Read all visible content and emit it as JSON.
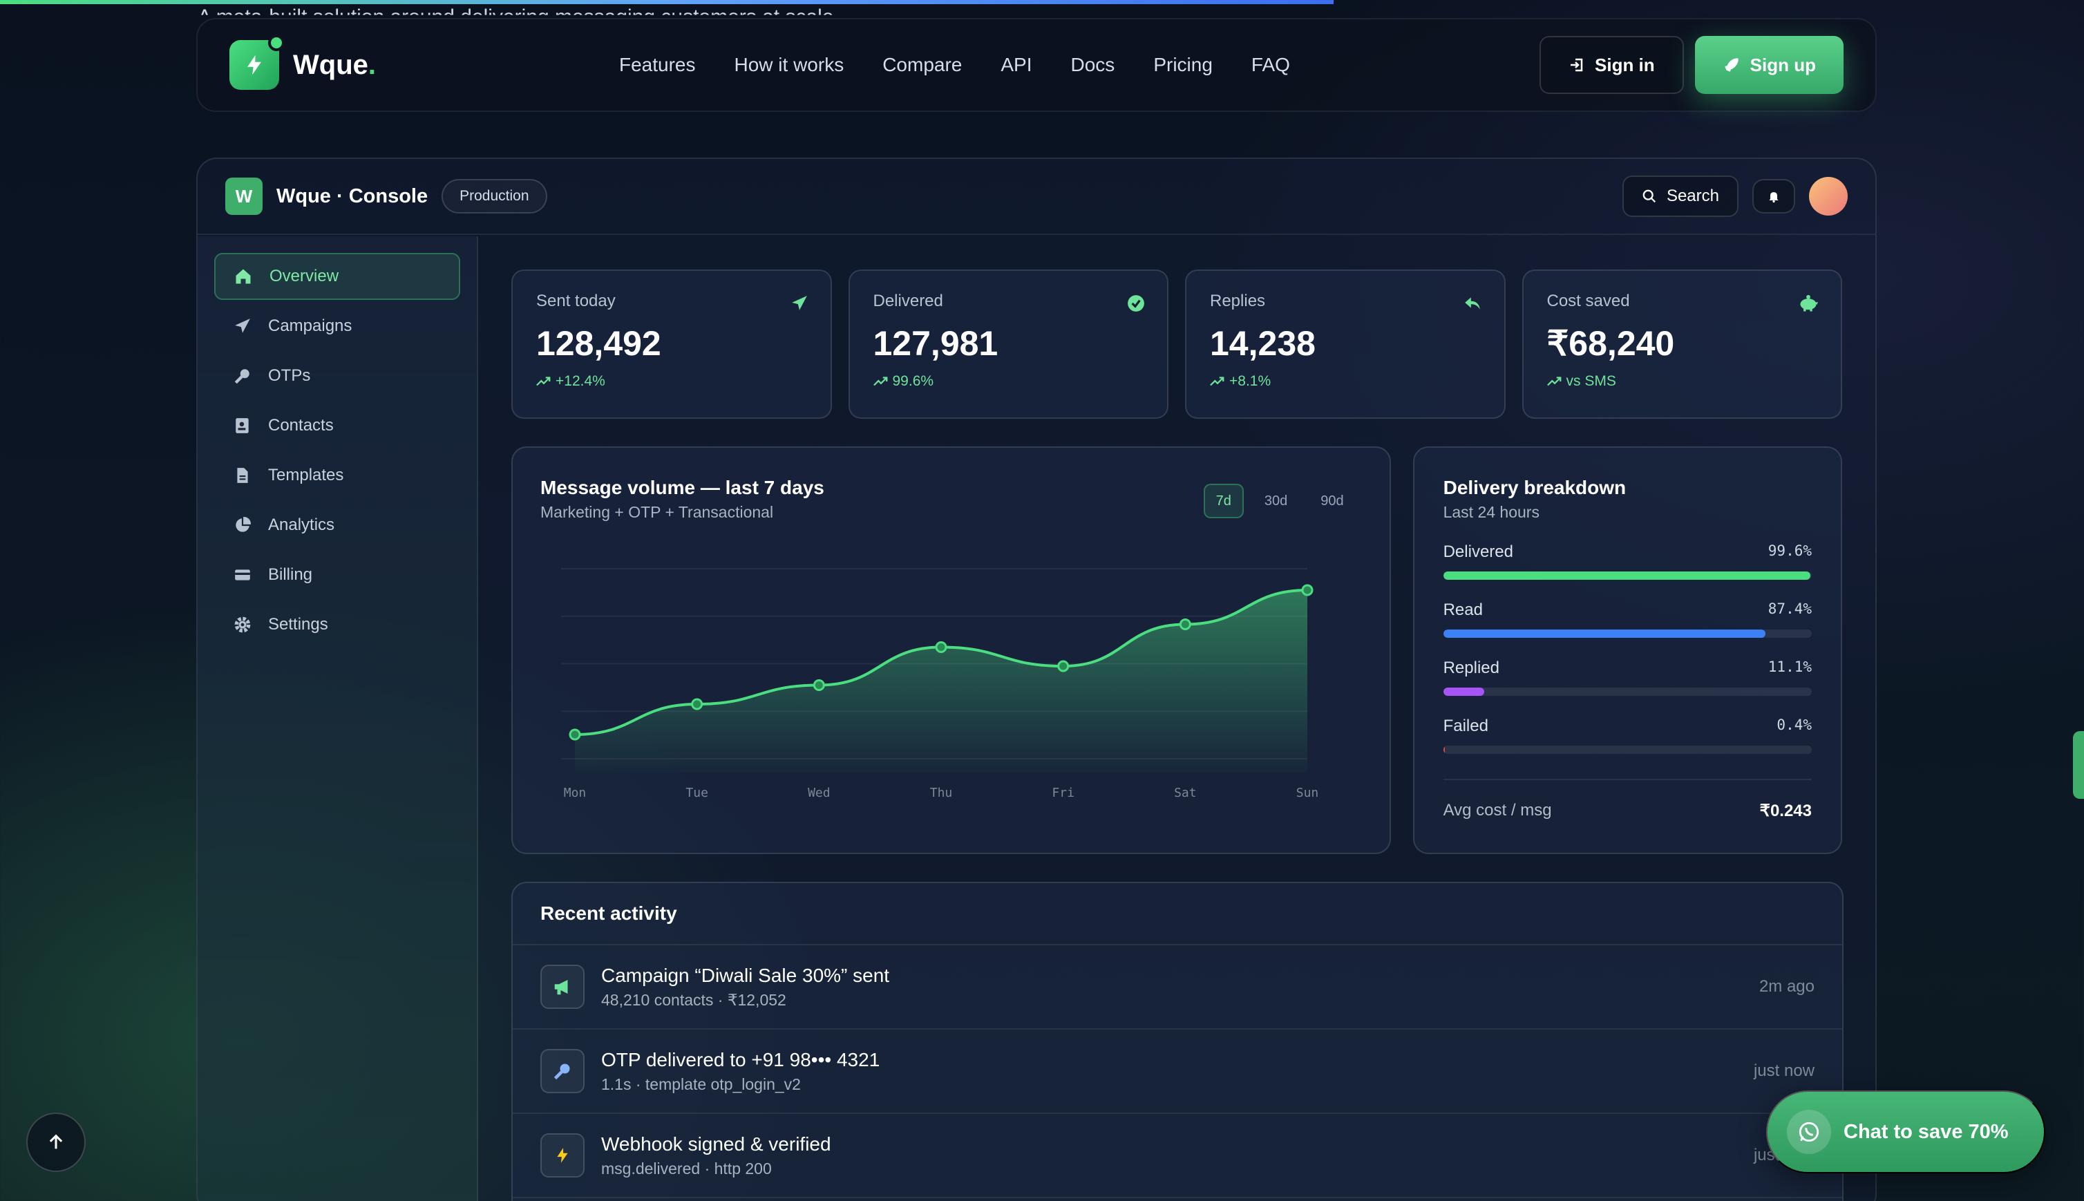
{
  "colors": {
    "accent": "#4ade80",
    "accent_dark": "#36a868",
    "blue": "#3b82f6",
    "purple": "#a855f7",
    "red": "#ef4444"
  },
  "scroll_progress": 0.64,
  "ghost_text": "A meta-built solution around delivering messaging customers at scale",
  "nav": {
    "brand": "Wque",
    "brand_dot": ".",
    "links": [
      "Features",
      "How it works",
      "Compare",
      "API",
      "Docs",
      "Pricing",
      "FAQ"
    ],
    "signin": "Sign in",
    "signup": "Sign up"
  },
  "console": {
    "badge": "W",
    "title": "Wque · Console",
    "env": "Production",
    "search": "Search"
  },
  "sidebar": {
    "items": [
      {
        "label": "Overview",
        "icon": "home-icon"
      },
      {
        "label": "Campaigns",
        "icon": "send-icon"
      },
      {
        "label": "OTPs",
        "icon": "key-icon"
      },
      {
        "label": "Contacts",
        "icon": "contact-icon"
      },
      {
        "label": "Templates",
        "icon": "file-icon"
      },
      {
        "label": "Analytics",
        "icon": "pie-icon"
      },
      {
        "label": "Billing",
        "icon": "card-icon"
      },
      {
        "label": "Settings",
        "icon": "gear-icon"
      }
    ]
  },
  "stats": [
    {
      "label": "Sent today",
      "value": "128,492",
      "delta": "+12.4%",
      "icon": "paper-plane-icon"
    },
    {
      "label": "Delivered",
      "value": "127,981",
      "delta": "99.6%",
      "icon": "check-circle-icon"
    },
    {
      "label": "Replies",
      "value": "14,238",
      "delta": "+8.1%",
      "icon": "reply-icon"
    },
    {
      "label": "Cost saved",
      "value": "₹68,240",
      "delta": "vs SMS",
      "icon": "piggy-bank-icon"
    }
  ],
  "chart": {
    "title": "Message volume — last 7 days",
    "subtitle": "Marketing + OTP + Transactional",
    "ranges": [
      "7d",
      "30d",
      "90d"
    ],
    "active_range": "7d"
  },
  "chart_data": {
    "type": "area",
    "categories": [
      "Mon",
      "Tue",
      "Wed",
      "Thu",
      "Fri",
      "Sat",
      "Sun"
    ],
    "values": [
      20,
      36,
      46,
      66,
      56,
      78,
      96
    ],
    "ylim": [
      0,
      100
    ],
    "grid": true
  },
  "breakdown": {
    "title": "Delivery breakdown",
    "subtitle": "Last 24 hours",
    "rows": [
      {
        "label": "Delivered",
        "pct": "99.6%",
        "value": 99.6,
        "color": "#4ade80"
      },
      {
        "label": "Read",
        "pct": "87.4%",
        "value": 87.4,
        "color": "#3b82f6"
      },
      {
        "label": "Replied",
        "pct": "11.1%",
        "value": 11.1,
        "color": "#a855f7"
      },
      {
        "label": "Failed",
        "pct": "0.4%",
        "value": 0.4,
        "color": "#ef4444"
      }
    ],
    "avg_label": "Avg cost / msg",
    "avg_value": "₹0.243"
  },
  "activity": {
    "title": "Recent activity",
    "items": [
      {
        "title": "Campaign “Diwali Sale 30%” sent",
        "sub": "48,210 contacts · ₹12,052",
        "time": "2m ago",
        "icon": "megaphone-icon"
      },
      {
        "title": "OTP delivered to +91 98••• 4321",
        "sub": "1.1s · template otp_login_v2",
        "time": "just now",
        "icon": "key-icon"
      },
      {
        "title": "Webhook signed & verified",
        "sub": "msg.delivered · http 200",
        "time": "just now",
        "icon": "bolt-icon"
      }
    ]
  },
  "chat_button": "Chat to save 70%"
}
